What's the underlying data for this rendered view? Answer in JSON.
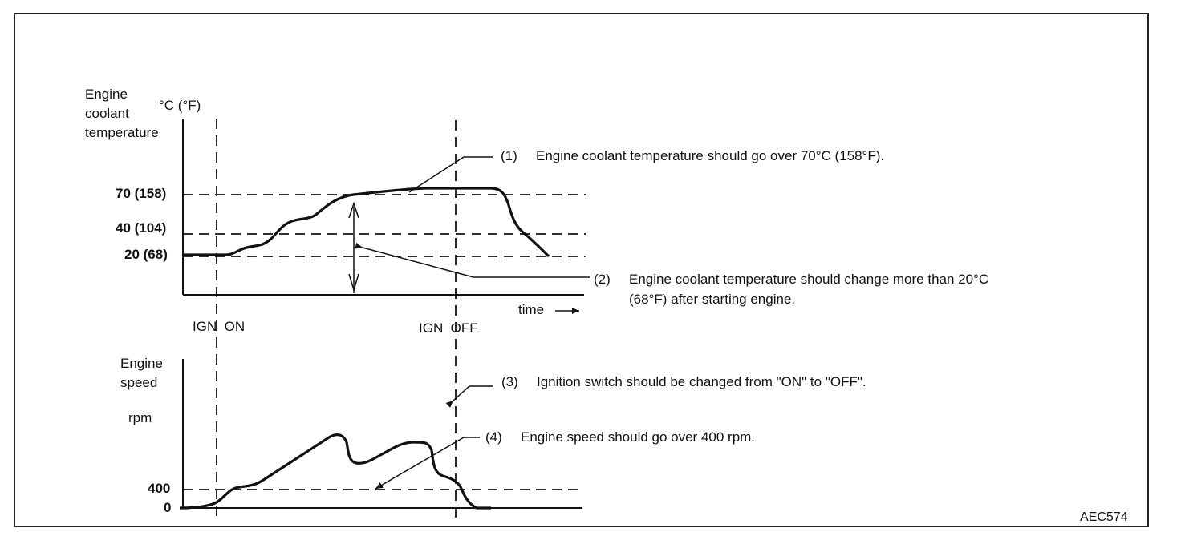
{
  "temp_axis": {
    "title": "Engine\ncoolant\ntemperature",
    "unit": "°C (°F)",
    "ticks": [
      "70 (158)",
      "40 (104)",
      "20 (68)"
    ],
    "x_label": "time"
  },
  "markers": {
    "ign_on": "IGN  ON",
    "ign_off": "IGN  OFF"
  },
  "speed_axis": {
    "title": "Engine\nspeed",
    "unit": "rpm",
    "ticks": [
      "400",
      "0"
    ]
  },
  "notes": [
    {
      "num": "(1)",
      "text": "Engine coolant temperature should go over 70°C (158°F)."
    },
    {
      "num": "(2)",
      "text": "Engine coolant temperature should change more than 20°C\n(68°F) after starting engine."
    },
    {
      "num": "(3)",
      "text": "Ignition switch should be changed from \"ON\" to \"OFF\"."
    },
    {
      "num": "(4)",
      "text": "Engine speed should go over 400 rpm."
    }
  ],
  "figure_code": "AEC574"
}
